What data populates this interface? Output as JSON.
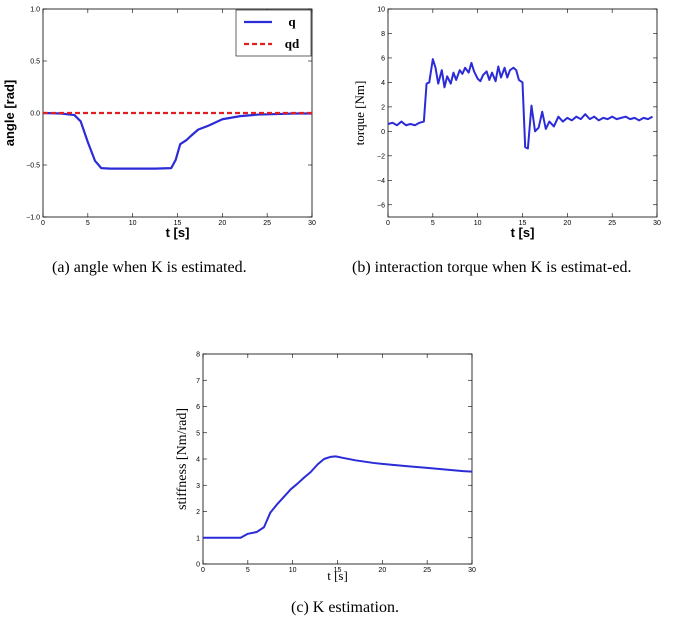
{
  "chart_data": [
    {
      "id": "a",
      "type": "line",
      "caption": "(a) angle when K is estimated.",
      "xlabel": "t [s]",
      "ylabel": "angle [rad]",
      "xlim": [
        0,
        30
      ],
      "ylim": [
        -1.0,
        1.0
      ],
      "xticks": [
        "0",
        "5",
        "10",
        "15",
        "20",
        "25",
        "30"
      ],
      "yticks": [
        "1.0",
        "0.5",
        "0.0",
        "−0.5",
        "−1.0"
      ],
      "ytick_values": [
        1.0,
        0.5,
        0.0,
        -0.5,
        -1.0
      ],
      "legend_position": "top-right",
      "grid": false,
      "series": [
        {
          "name": "q",
          "color": "#2b2bd8",
          "style": "solid",
          "x": [
            0,
            2,
            3.5,
            4.2,
            5,
            5.8,
            6.5,
            7.5,
            10,
            12.5,
            14.3,
            14.8,
            15.3,
            16,
            16.5,
            17.3,
            18.5,
            20,
            22,
            24,
            26,
            28,
            30
          ],
          "y": [
            0.0,
            -0.005,
            -0.02,
            -0.08,
            -0.28,
            -0.46,
            -0.53,
            -0.535,
            -0.535,
            -0.535,
            -0.53,
            -0.45,
            -0.3,
            -0.26,
            -0.22,
            -0.16,
            -0.12,
            -0.06,
            -0.03,
            -0.015,
            -0.01,
            -0.005,
            -0.005
          ]
        },
        {
          "name": "qd",
          "color": "#e02020",
          "style": "dashed",
          "x": [
            0,
            30
          ],
          "y": [
            0.0,
            0.0
          ]
        }
      ]
    },
    {
      "id": "b",
      "type": "line",
      "caption": "(b) interaction torque when K is estimat-ed.",
      "xlabel": "t [s]",
      "ylabel": "torque [Nm]",
      "xlim": [
        0,
        30
      ],
      "ylim": [
        -7,
        10
      ],
      "xticks": [
        "0",
        "5",
        "10",
        "15",
        "20",
        "25",
        "30"
      ],
      "yticks": [
        "10",
        "8",
        "6",
        "4",
        "2",
        "0",
        "−2",
        "−4",
        "−6"
      ],
      "ytick_values": [
        10,
        8,
        6,
        4,
        2,
        0,
        -2,
        -4,
        -6
      ],
      "grid": false,
      "series": [
        {
          "color": "#2b2bd8",
          "style": "solid",
          "x": [
            0,
            0.5,
            1,
            1.5,
            2,
            2.5,
            3,
            3.5,
            4,
            4.3,
            4.6,
            5,
            5.3,
            5.6,
            6,
            6.3,
            6.6,
            7,
            7.3,
            7.6,
            8,
            8.3,
            8.6,
            9,
            9.3,
            9.6,
            10,
            10.3,
            10.6,
            11,
            11.3,
            11.6,
            12,
            12.3,
            12.6,
            13,
            13.3,
            13.6,
            14,
            14.3,
            14.6,
            15,
            15.3,
            15.6,
            16,
            16.4,
            16.8,
            17.2,
            17.6,
            18,
            18.5,
            19,
            19.5,
            20,
            20.5,
            21,
            21.5,
            22,
            22.5,
            23,
            23.5,
            24,
            24.5,
            25,
            25.5,
            26,
            26.5,
            27,
            27.5,
            28,
            28.5,
            29,
            29.5
          ],
          "y": [
            0.6,
            0.7,
            0.5,
            0.8,
            0.5,
            0.6,
            0.5,
            0.7,
            0.8,
            3.9,
            4.0,
            5.9,
            5.2,
            3.9,
            5.0,
            3.6,
            4.5,
            3.9,
            4.8,
            4.2,
            5.0,
            4.7,
            5.2,
            4.8,
            5.6,
            4.9,
            4.3,
            4.1,
            4.6,
            4.9,
            4.2,
            4.8,
            4.1,
            5.3,
            4.4,
            5.2,
            4.4,
            5.0,
            5.2,
            5.0,
            4.2,
            4.0,
            -1.3,
            -1.4,
            2.1,
            0.0,
            0.3,
            1.6,
            0.2,
            0.8,
            0.4,
            1.2,
            0.8,
            1.1,
            0.9,
            1.2,
            1.0,
            1.4,
            1.0,
            1.2,
            0.9,
            1.1,
            1.0,
            1.2,
            1.0,
            1.1,
            1.2,
            1.0,
            1.1,
            0.9,
            1.1,
            1.0,
            1.2
          ]
        }
      ]
    },
    {
      "id": "c",
      "type": "line",
      "caption": "(c) K estimation.",
      "xlabel": "t [s]",
      "ylabel": "stiffness [Nm/rad]",
      "xlim": [
        0,
        30
      ],
      "ylim": [
        0,
        8
      ],
      "xticks": [
        "0",
        "5",
        "10",
        "15",
        "20",
        "25",
        "30"
      ],
      "yticks": [
        "8",
        "7",
        "6",
        "5",
        "4",
        "3",
        "2",
        "1",
        "0"
      ],
      "ytick_values": [
        8,
        7,
        6,
        5,
        4,
        3,
        2,
        1,
        0
      ],
      "grid": false,
      "series": [
        {
          "color": "#2b2bd8",
          "style": "solid",
          "x": [
            0,
            2,
            3.5,
            4.2,
            5,
            6,
            6.8,
            7.5,
            8.2,
            9,
            9.8,
            10.5,
            11.3,
            12,
            12.8,
            13.5,
            14.2,
            14.8,
            15.5,
            17,
            19,
            21,
            23,
            25,
            27,
            29,
            30
          ],
          "y": [
            1.0,
            1.0,
            1.0,
            1.0,
            1.15,
            1.22,
            1.4,
            1.95,
            2.25,
            2.55,
            2.85,
            3.05,
            3.3,
            3.5,
            3.8,
            4.0,
            4.08,
            4.1,
            4.05,
            3.95,
            3.85,
            3.78,
            3.72,
            3.66,
            3.6,
            3.54,
            3.52
          ]
        }
      ]
    }
  ]
}
